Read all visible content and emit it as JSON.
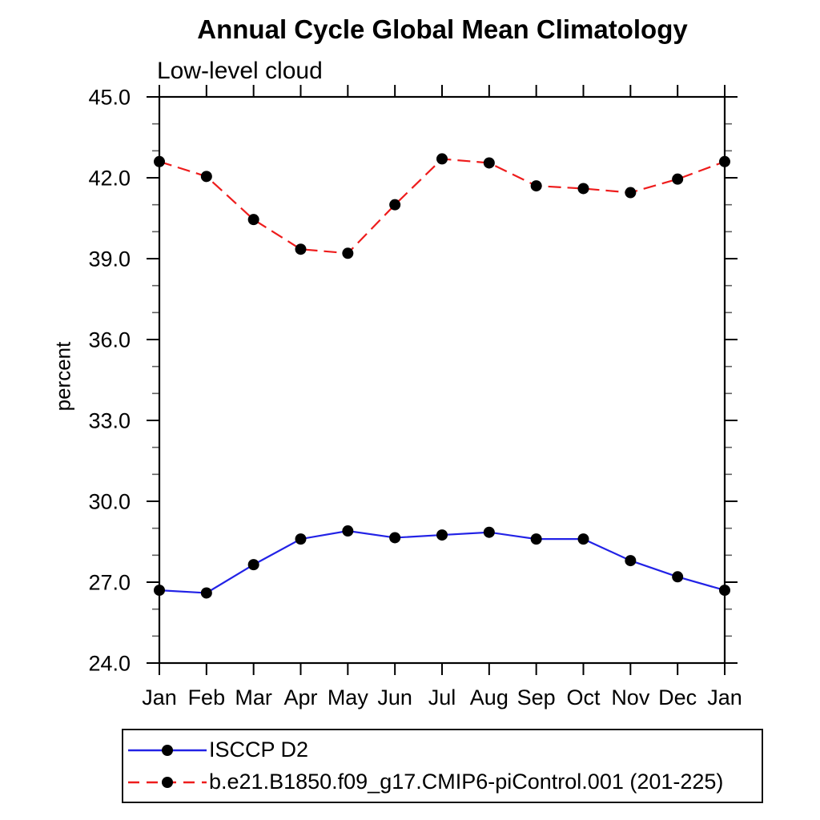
{
  "chart_data": {
    "type": "line",
    "title": "Annual Cycle Global Mean Climatology",
    "subtitle": "Low-level cloud",
    "ylabel": "percent",
    "ylim": [
      24.0,
      45.0
    ],
    "ytick_interval_major": 3.0,
    "ytick_interval_minor": 1.0,
    "ytick_labels": [
      "24.0",
      "27.0",
      "30.0",
      "33.0",
      "36.0",
      "39.0",
      "42.0",
      "45.0"
    ],
    "x_categories": [
      "Jan",
      "Feb",
      "Mar",
      "Apr",
      "May",
      "Jun",
      "Jul",
      "Aug",
      "Sep",
      "Oct",
      "Nov",
      "Dec",
      "Jan"
    ],
    "grid": false,
    "legend_position": "bottom-left",
    "series": [
      {
        "name": "ISCCP D2",
        "line_color": "#2222e6",
        "line_style": "solid",
        "marker_shape": "filled-circle",
        "marker_color": "#000000",
        "values": [
          26.7,
          26.6,
          27.65,
          28.6,
          28.9,
          28.65,
          28.75,
          28.85,
          28.6,
          28.6,
          27.8,
          27.2,
          26.7
        ]
      },
      {
        "name": "b.e21.B1850.f09_g17.CMIP6-piControl.001 (201-225)",
        "line_color": "#ee1c1c",
        "line_style": "dashed",
        "marker_shape": "filled-circle",
        "marker_color": "#000000",
        "values": [
          42.6,
          42.05,
          40.45,
          39.35,
          39.2,
          41.0,
          42.7,
          42.55,
          41.7,
          41.6,
          41.45,
          41.95,
          42.6
        ]
      }
    ]
  }
}
